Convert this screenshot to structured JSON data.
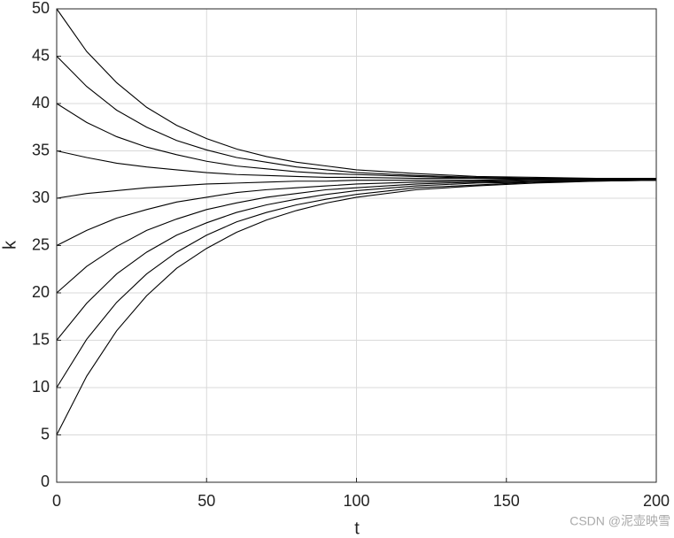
{
  "chart_data": {
    "type": "line",
    "xlabel": "t",
    "ylabel": "k",
    "annotation": "CSDN @泥壶映雪",
    "x": [
      0,
      10,
      20,
      30,
      40,
      50,
      60,
      70,
      80,
      90,
      100,
      120,
      140,
      160,
      180,
      200
    ],
    "series": [
      {
        "color": "#000000",
        "values": [
          50,
          45.5,
          42.2,
          39.6,
          37.7,
          36.3,
          35.2,
          34.4,
          33.8,
          33.4,
          33.0,
          32.6,
          32.3,
          32.2,
          32.1,
          32.1
        ]
      },
      {
        "color": "#000000",
        "values": [
          45,
          41.8,
          39.3,
          37.5,
          36.1,
          35.1,
          34.3,
          33.8,
          33.3,
          33.0,
          32.7,
          32.4,
          32.2,
          32.1,
          32.1,
          32.0
        ]
      },
      {
        "color": "#000000",
        "values": [
          40,
          38.0,
          36.5,
          35.4,
          34.6,
          33.9,
          33.4,
          33.1,
          32.8,
          32.6,
          32.5,
          32.3,
          32.1,
          32.1,
          32.0,
          32.0
        ]
      },
      {
        "color": "#000000",
        "values": [
          35,
          34.3,
          33.7,
          33.3,
          33.0,
          32.7,
          32.5,
          32.4,
          32.3,
          32.2,
          32.2,
          32.1,
          32.1,
          32.0,
          32.0,
          32.0
        ]
      },
      {
        "color": "#000000",
        "values": [
          30,
          30.5,
          30.8,
          31.1,
          31.3,
          31.5,
          31.6,
          31.7,
          31.8,
          31.8,
          31.9,
          31.9,
          31.9,
          32.0,
          32.0,
          32.0
        ]
      },
      {
        "color": "#000000",
        "values": [
          25,
          26.6,
          27.9,
          28.8,
          29.6,
          30.1,
          30.6,
          30.9,
          31.1,
          31.3,
          31.5,
          31.7,
          31.8,
          31.9,
          31.9,
          32.0
        ]
      },
      {
        "color": "#000000",
        "values": [
          20,
          22.8,
          24.9,
          26.6,
          27.8,
          28.8,
          29.5,
          30.1,
          30.5,
          30.9,
          31.1,
          31.5,
          31.7,
          31.8,
          31.9,
          31.9
        ]
      },
      {
        "color": "#000000",
        "values": [
          15,
          18.9,
          22.0,
          24.3,
          26.1,
          27.4,
          28.5,
          29.3,
          29.9,
          30.4,
          30.8,
          31.3,
          31.6,
          31.7,
          31.9,
          31.9
        ]
      },
      {
        "color": "#000000",
        "values": [
          10,
          15.1,
          19.0,
          22.0,
          24.3,
          26.1,
          27.5,
          28.5,
          29.3,
          29.9,
          30.4,
          31.1,
          31.4,
          31.7,
          31.8,
          31.9
        ]
      },
      {
        "color": "#000000",
        "values": [
          5,
          11.2,
          16.0,
          19.7,
          22.6,
          24.7,
          26.4,
          27.7,
          28.7,
          29.5,
          30.1,
          30.9,
          31.3,
          31.6,
          31.8,
          31.9
        ]
      }
    ],
    "xlim": [
      0,
      200
    ],
    "xticks": [
      0,
      50,
      100,
      150,
      200
    ],
    "ylim": [
      0,
      50
    ],
    "yticks": [
      0,
      5,
      10,
      15,
      20,
      25,
      30,
      35,
      40,
      45,
      50
    ],
    "grid": true
  }
}
